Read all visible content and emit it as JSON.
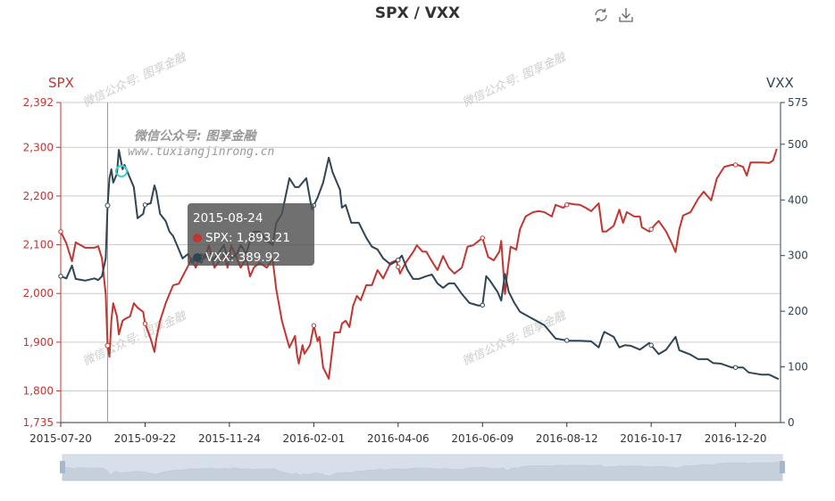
{
  "chart_data": {
    "type": "line",
    "title": "SPX / VXX",
    "xlabel": "",
    "x_tick_labels": [
      "2015-07-20",
      "2015-09-22",
      "2015-11-24",
      "2016-02-01",
      "2016-04-06",
      "2016-06-09",
      "2016-08-12",
      "2016-10-17",
      "2016-12-20"
    ],
    "x_tick_interval_days": 45,
    "x_range_trading_days": [
      0,
      384
    ],
    "y_left": {
      "name": "SPX",
      "range": [
        1735,
        2392
      ],
      "ticks": [
        1735,
        1800,
        1900,
        2000,
        2100,
        2200,
        2300,
        2392
      ],
      "tick_labels": [
        "1,735",
        "1,800",
        "1,900",
        "2,000",
        "2,100",
        "2,200",
        "2,300",
        "2,392"
      ]
    },
    "y_right": {
      "name": "VXX",
      "range": [
        0,
        575
      ],
      "ticks": [
        0,
        100,
        200,
        300,
        400,
        500,
        575
      ],
      "tick_labels": [
        "0",
        "100",
        "200",
        "300",
        "400",
        "500",
        "575"
      ]
    },
    "grid": true,
    "series": [
      {
        "name": "SPX",
        "axis": "left",
        "color": "#c23531",
        "points": [
          [
            0,
            2127
          ],
          [
            3,
            2103
          ],
          [
            6,
            2066
          ],
          [
            8,
            2105
          ],
          [
            13,
            2094
          ],
          [
            18,
            2094
          ],
          [
            20,
            2097
          ],
          [
            22,
            2072
          ],
          [
            24,
            1999
          ],
          [
            25,
            1893
          ],
          [
            26,
            1870
          ],
          [
            27,
            1944
          ],
          [
            28,
            1980
          ],
          [
            30,
            1953
          ],
          [
            31,
            1916
          ],
          [
            33,
            1944
          ],
          [
            34,
            1947
          ],
          [
            37,
            1953
          ],
          [
            39,
            1980
          ],
          [
            41,
            1971
          ],
          [
            44,
            1962
          ],
          [
            45,
            1938
          ],
          [
            48,
            1907
          ],
          [
            50,
            1880
          ],
          [
            51,
            1907
          ],
          [
            53,
            1944
          ],
          [
            56,
            1980
          ],
          [
            58,
            1999
          ],
          [
            60,
            2017
          ],
          [
            63,
            2020
          ],
          [
            65,
            2035
          ],
          [
            68,
            2057
          ],
          [
            70,
            2072
          ],
          [
            72,
            2053
          ],
          [
            75,
            2081
          ],
          [
            77,
            2072
          ],
          [
            79,
            2099
          ],
          [
            82,
            2053
          ],
          [
            84,
            2063
          ],
          [
            87,
            2081
          ],
          [
            89,
            2053
          ],
          [
            91,
            2099
          ],
          [
            94,
            2072
          ],
          [
            96,
            2053
          ],
          [
            99,
            2072
          ],
          [
            101,
            2035
          ],
          [
            103,
            2053
          ],
          [
            106,
            2063
          ],
          [
            110,
            2053
          ],
          [
            113,
            2072
          ],
          [
            115,
            2008
          ],
          [
            118,
            1944
          ],
          [
            120,
            1916
          ],
          [
            122,
            1889
          ],
          [
            125,
            1913
          ],
          [
            126,
            1876
          ],
          [
            127,
            1856
          ],
          [
            129,
            1894
          ],
          [
            130,
            1876
          ],
          [
            133,
            1894
          ],
          [
            135,
            1934
          ],
          [
            137,
            1902
          ],
          [
            138,
            1911
          ],
          [
            140,
            1848
          ],
          [
            143,
            1825
          ],
          [
            146,
            1920
          ],
          [
            149,
            1920
          ],
          [
            150,
            1938
          ],
          [
            152,
            1944
          ],
          [
            154,
            1931
          ],
          [
            156,
            1975
          ],
          [
            158,
            1995
          ],
          [
            160,
            1986
          ],
          [
            163,
            2017
          ],
          [
            166,
            2017
          ],
          [
            169,
            2048
          ],
          [
            172,
            2031
          ],
          [
            176,
            2063
          ],
          [
            179,
            2068
          ],
          [
            181,
            2041
          ],
          [
            184,
            2063
          ],
          [
            188,
            2085
          ],
          [
            190,
            2099
          ],
          [
            193,
            2086
          ],
          [
            195,
            2086
          ],
          [
            198,
            2066
          ],
          [
            201,
            2048
          ],
          [
            204,
            2077
          ],
          [
            207,
            2053
          ],
          [
            210,
            2041
          ],
          [
            214,
            2053
          ],
          [
            217,
            2096
          ],
          [
            220,
            2099
          ],
          [
            223,
            2108
          ],
          [
            225,
            2114
          ],
          [
            228,
            2075
          ],
          [
            231,
            2068
          ],
          [
            234,
            2086
          ],
          [
            235,
            2108
          ],
          [
            237,
            1999
          ],
          [
            238,
            2035
          ],
          [
            240,
            2096
          ],
          [
            243,
            2090
          ],
          [
            245,
            2132
          ],
          [
            248,
            2158
          ],
          [
            252,
            2167
          ],
          [
            255,
            2169
          ],
          [
            258,
            2167
          ],
          [
            262,
            2158
          ],
          [
            264,
            2182
          ],
          [
            268,
            2176
          ],
          [
            271,
            2185
          ],
          [
            274,
            2183
          ],
          [
            277,
            2182
          ],
          [
            280,
            2176
          ],
          [
            283,
            2169
          ],
          [
            287,
            2185
          ],
          [
            289,
            2127
          ],
          [
            291,
            2127
          ],
          [
            295,
            2139
          ],
          [
            298,
            2172
          ],
          [
            300,
            2145
          ],
          [
            302,
            2167
          ],
          [
            306,
            2158
          ],
          [
            309,
            2158
          ],
          [
            310,
            2136
          ],
          [
            314,
            2127
          ],
          [
            317,
            2141
          ],
          [
            319,
            2149
          ],
          [
            323,
            2127
          ],
          [
            326,
            2103
          ],
          [
            328,
            2085
          ],
          [
            330,
            2132
          ],
          [
            332,
            2160
          ],
          [
            336,
            2167
          ],
          [
            340,
            2194
          ],
          [
            343,
            2209
          ],
          [
            347,
            2191
          ],
          [
            350,
            2236
          ],
          [
            354,
            2260
          ],
          [
            358,
            2264
          ],
          [
            361,
            2264
          ],
          [
            364,
            2260
          ],
          [
            366,
            2242
          ],
          [
            368,
            2269
          ],
          [
            374,
            2269
          ],
          [
            378,
            2268
          ],
          [
            380,
            2273
          ],
          [
            382,
            2297
          ]
        ]
      },
      {
        "name": "VXX",
        "axis": "right",
        "color": "#2f4554",
        "points": [
          [
            0,
            263
          ],
          [
            3,
            259
          ],
          [
            6,
            282
          ],
          [
            8,
            258
          ],
          [
            13,
            255
          ],
          [
            18,
            259
          ],
          [
            20,
            256
          ],
          [
            22,
            263
          ],
          [
            24,
            295
          ],
          [
            25,
            390
          ],
          [
            26,
            439
          ],
          [
            27,
            455
          ],
          [
            28,
            431
          ],
          [
            30,
            447
          ],
          [
            31,
            490
          ],
          [
            33,
            455
          ],
          [
            34,
            463
          ],
          [
            37,
            439
          ],
          [
            39,
            423
          ],
          [
            41,
            367
          ],
          [
            44,
            375
          ],
          [
            45,
            391
          ],
          [
            48,
            394
          ],
          [
            50,
            426
          ],
          [
            51,
            415
          ],
          [
            53,
            375
          ],
          [
            56,
            362
          ],
          [
            58,
            343
          ],
          [
            60,
            335
          ],
          [
            63,
            311
          ],
          [
            65,
            295
          ],
          [
            68,
            303
          ],
          [
            70,
            287
          ],
          [
            72,
            295
          ],
          [
            75,
            287
          ],
          [
            77,
            303
          ],
          [
            79,
            292
          ],
          [
            82,
            295
          ],
          [
            84,
            303
          ],
          [
            87,
            319
          ],
          [
            89,
            295
          ],
          [
            91,
            295
          ],
          [
            94,
            303
          ],
          [
            96,
            319
          ],
          [
            99,
            303
          ],
          [
            101,
            327
          ],
          [
            103,
            343
          ],
          [
            106,
            343
          ],
          [
            110,
            327
          ],
          [
            113,
            319
          ],
          [
            115,
            359
          ],
          [
            118,
            375
          ],
          [
            120,
            407
          ],
          [
            122,
            439
          ],
          [
            125,
            423
          ],
          [
            127,
            423
          ],
          [
            131,
            439
          ],
          [
            134,
            383
          ],
          [
            137,
            404
          ],
          [
            140,
            431
          ],
          [
            143,
            476
          ],
          [
            145,
            450
          ],
          [
            149,
            418
          ],
          [
            150,
            386
          ],
          [
            152,
            391
          ],
          [
            155,
            359
          ],
          [
            159,
            359
          ],
          [
            163,
            332
          ],
          [
            166,
            316
          ],
          [
            169,
            311
          ],
          [
            172,
            295
          ],
          [
            176,
            284
          ],
          [
            180,
            292
          ],
          [
            182,
            300
          ],
          [
            185,
            274
          ],
          [
            188,
            258
          ],
          [
            191,
            258
          ],
          [
            195,
            263
          ],
          [
            198,
            266
          ],
          [
            201,
            250
          ],
          [
            204,
            242
          ],
          [
            207,
            250
          ],
          [
            210,
            250
          ],
          [
            214,
            231
          ],
          [
            218,
            215
          ],
          [
            223,
            210
          ],
          [
            225,
            211
          ],
          [
            227,
            263
          ],
          [
            229,
            255
          ],
          [
            233,
            235
          ],
          [
            235,
            219
          ],
          [
            237,
            267
          ],
          [
            239,
            235
          ],
          [
            242,
            215
          ],
          [
            245,
            199
          ],
          [
            252,
            186
          ],
          [
            258,
            175
          ],
          [
            264,
            151
          ],
          [
            271,
            147
          ],
          [
            277,
            147
          ],
          [
            283,
            146
          ],
          [
            287,
            135
          ],
          [
            289,
            155
          ],
          [
            290,
            163
          ],
          [
            295,
            154
          ],
          [
            298,
            135
          ],
          [
            301,
            139
          ],
          [
            304,
            138
          ],
          [
            309,
            131
          ],
          [
            314,
            143
          ],
          [
            319,
            123
          ],
          [
            323,
            131
          ],
          [
            328,
            154
          ],
          [
            330,
            130
          ],
          [
            336,
            122
          ],
          [
            340,
            114
          ],
          [
            345,
            114
          ],
          [
            348,
            107
          ],
          [
            352,
            106
          ],
          [
            358,
            99
          ],
          [
            364,
            99
          ],
          [
            367,
            90
          ],
          [
            374,
            86
          ],
          [
            378,
            86
          ],
          [
            383,
            78
          ]
        ]
      }
    ],
    "tooltip": {
      "date": "2015-08-24",
      "index": 25,
      "items": [
        {
          "label": "SPX: 1,893.21",
          "color": "#c23531"
        },
        {
          "label": "VXX: 389.92",
          "color": "#2f4554"
        }
      ]
    },
    "watermark": {
      "text": "微信公众号: 图享金融",
      "url": "www.tuxiangjinrong.cn"
    },
    "legend": "none"
  },
  "toolbox": {
    "restore_icon": "refresh-icon",
    "save_icon": "download-icon"
  }
}
